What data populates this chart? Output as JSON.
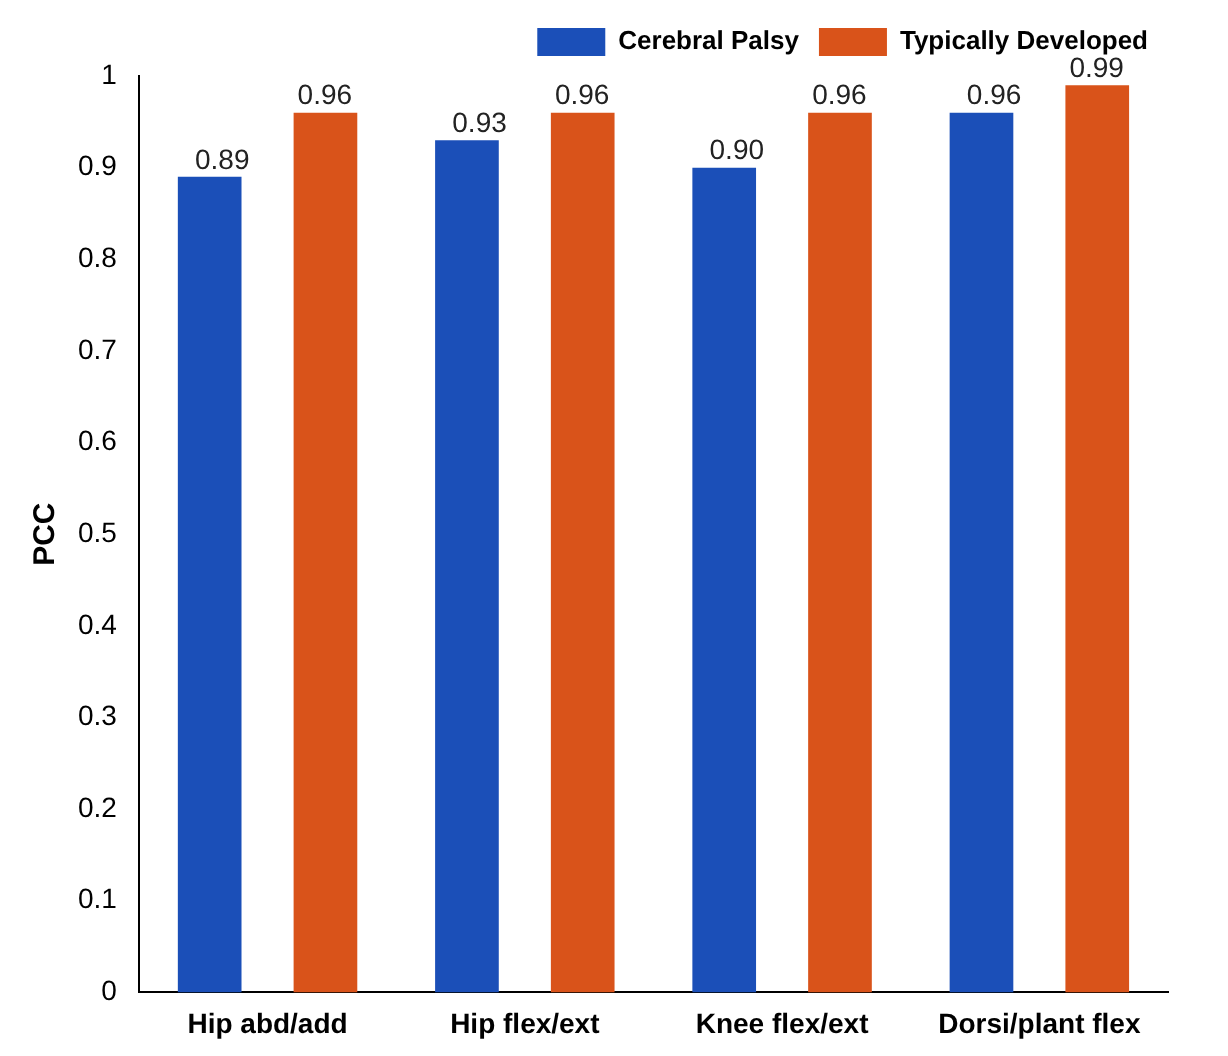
{
  "chart_data": {
    "type": "bar",
    "ylabel": "PCC",
    "categories": [
      "Hip abd/add",
      "Hip flex/ext",
      "Knee flex/ext",
      "Dorsi/plant flex"
    ],
    "series": [
      {
        "name": "Cerebral Palsy",
        "color": "#1b4fb8",
        "values": [
          0.89,
          0.93,
          0.9,
          0.96
        ],
        "value_labels": [
          "0.89",
          "0.93",
          "0.90",
          "0.96"
        ]
      },
      {
        "name": "Typically Developed",
        "color": "#d9531a",
        "values": [
          0.96,
          0.96,
          0.96,
          0.99
        ],
        "value_labels": [
          "0.96",
          "0.96",
          "0.96",
          "0.99"
        ]
      }
    ],
    "ylim": [
      0,
      1
    ],
    "yticks": [
      0,
      0.1,
      0.2,
      0.3,
      0.4,
      0.5,
      0.6,
      0.7,
      0.8,
      0.9,
      1
    ],
    "grid": false,
    "legend": "top right"
  }
}
